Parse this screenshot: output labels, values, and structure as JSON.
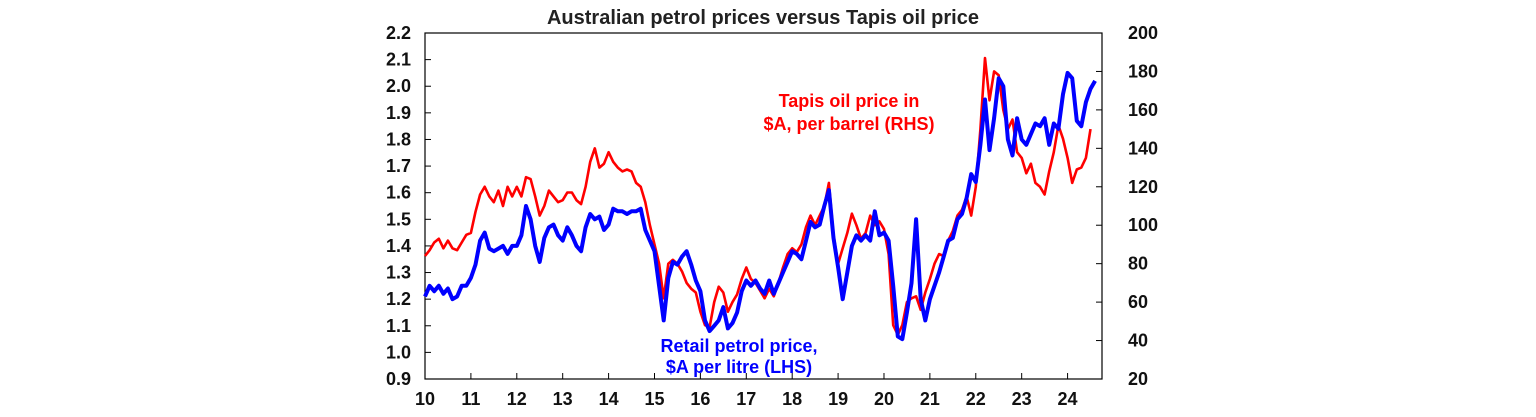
{
  "chart_data": {
    "type": "line",
    "title": "Australian petrol prices versus Tapis oil price",
    "x_ticks": [
      "10",
      "11",
      "12",
      "13",
      "14",
      "15",
      "16",
      "17",
      "18",
      "19",
      "20",
      "21",
      "22",
      "23",
      "24"
    ],
    "x_range": [
      2010,
      2024.75
    ],
    "y_left": {
      "range": [
        0.9,
        2.2
      ],
      "ticks": [
        "0.9",
        "1.0",
        "1.1",
        "1.2",
        "1.3",
        "1.4",
        "1.5",
        "1.6",
        "1.7",
        "1.8",
        "1.9",
        "2.0",
        "2.1",
        "2.2"
      ]
    },
    "y_right": {
      "range": [
        20,
        200
      ],
      "ticks": [
        "20",
        "40",
        "60",
        "80",
        "100",
        "120",
        "140",
        "160",
        "180",
        "200"
      ]
    },
    "grid": false,
    "series": [
      {
        "name": "Retail petrol price, $A per litre (LHS)",
        "axis": "left",
        "color": "#0000ff",
        "points": [
          [
            2010.0,
            1.21
          ],
          [
            2010.1,
            1.25
          ],
          [
            2010.2,
            1.23
          ],
          [
            2010.3,
            1.25
          ],
          [
            2010.4,
            1.22
          ],
          [
            2010.5,
            1.24
          ],
          [
            2010.6,
            1.2
          ],
          [
            2010.7,
            1.21
          ],
          [
            2010.8,
            1.25
          ],
          [
            2010.9,
            1.25
          ],
          [
            2011.0,
            1.28
          ],
          [
            2011.1,
            1.33
          ],
          [
            2011.2,
            1.42
          ],
          [
            2011.3,
            1.45
          ],
          [
            2011.4,
            1.39
          ],
          [
            2011.5,
            1.38
          ],
          [
            2011.6,
            1.39
          ],
          [
            2011.7,
            1.4
          ],
          [
            2011.8,
            1.37
          ],
          [
            2011.9,
            1.4
          ],
          [
            2012.0,
            1.4
          ],
          [
            2012.1,
            1.44
          ],
          [
            2012.2,
            1.55
          ],
          [
            2012.3,
            1.5
          ],
          [
            2012.4,
            1.4
          ],
          [
            2012.5,
            1.34
          ],
          [
            2012.6,
            1.43
          ],
          [
            2012.7,
            1.47
          ],
          [
            2012.8,
            1.48
          ],
          [
            2012.9,
            1.44
          ],
          [
            2013.0,
            1.42
          ],
          [
            2013.1,
            1.47
          ],
          [
            2013.2,
            1.44
          ],
          [
            2013.3,
            1.4
          ],
          [
            2013.4,
            1.38
          ],
          [
            2013.5,
            1.47
          ],
          [
            2013.6,
            1.52
          ],
          [
            2013.7,
            1.5
          ],
          [
            2013.8,
            1.51
          ],
          [
            2013.9,
            1.46
          ],
          [
            2014.0,
            1.48
          ],
          [
            2014.1,
            1.54
          ],
          [
            2014.2,
            1.53
          ],
          [
            2014.3,
            1.53
          ],
          [
            2014.4,
            1.52
          ],
          [
            2014.5,
            1.53
          ],
          [
            2014.6,
            1.53
          ],
          [
            2014.7,
            1.54
          ],
          [
            2014.8,
            1.46
          ],
          [
            2014.9,
            1.42
          ],
          [
            2015.0,
            1.38
          ],
          [
            2015.1,
            1.25
          ],
          [
            2015.2,
            1.12
          ],
          [
            2015.3,
            1.28
          ],
          [
            2015.4,
            1.34
          ],
          [
            2015.5,
            1.33
          ],
          [
            2015.6,
            1.36
          ],
          [
            2015.7,
            1.38
          ],
          [
            2015.8,
            1.33
          ],
          [
            2015.9,
            1.27
          ],
          [
            2016.0,
            1.23
          ],
          [
            2016.1,
            1.12
          ],
          [
            2016.2,
            1.08
          ],
          [
            2016.3,
            1.1
          ],
          [
            2016.4,
            1.12
          ],
          [
            2016.5,
            1.17
          ],
          [
            2016.6,
            1.09
          ],
          [
            2016.7,
            1.11
          ],
          [
            2016.8,
            1.15
          ],
          [
            2016.9,
            1.23
          ],
          [
            2017.0,
            1.27
          ],
          [
            2017.1,
            1.25
          ],
          [
            2017.2,
            1.27
          ],
          [
            2017.3,
            1.24
          ],
          [
            2017.4,
            1.22
          ],
          [
            2017.5,
            1.27
          ],
          [
            2017.6,
            1.22
          ],
          [
            2017.7,
            1.26
          ],
          [
            2017.8,
            1.3
          ],
          [
            2017.9,
            1.34
          ],
          [
            2018.0,
            1.38
          ],
          [
            2018.1,
            1.37
          ],
          [
            2018.2,
            1.35
          ],
          [
            2018.3,
            1.42
          ],
          [
            2018.4,
            1.49
          ],
          [
            2018.5,
            1.47
          ],
          [
            2018.6,
            1.48
          ],
          [
            2018.7,
            1.55
          ],
          [
            2018.8,
            1.61
          ],
          [
            2018.9,
            1.43
          ],
          [
            2019.0,
            1.32
          ],
          [
            2019.1,
            1.2
          ],
          [
            2019.2,
            1.3
          ],
          [
            2019.3,
            1.4
          ],
          [
            2019.4,
            1.44
          ],
          [
            2019.5,
            1.42
          ],
          [
            2019.6,
            1.44
          ],
          [
            2019.7,
            1.42
          ],
          [
            2019.8,
            1.53
          ],
          [
            2019.9,
            1.44
          ],
          [
            2020.0,
            1.45
          ],
          [
            2020.1,
            1.42
          ],
          [
            2020.2,
            1.25
          ],
          [
            2020.3,
            1.06
          ],
          [
            2020.4,
            1.05
          ],
          [
            2020.5,
            1.15
          ],
          [
            2020.6,
            1.26
          ],
          [
            2020.7,
            1.5
          ],
          [
            2020.8,
            1.2
          ],
          [
            2020.9,
            1.12
          ],
          [
            2021.0,
            1.2
          ],
          [
            2021.1,
            1.25
          ],
          [
            2021.2,
            1.3
          ],
          [
            2021.3,
            1.36
          ],
          [
            2021.4,
            1.42
          ],
          [
            2021.5,
            1.43
          ],
          [
            2021.6,
            1.5
          ],
          [
            2021.7,
            1.52
          ],
          [
            2021.8,
            1.58
          ],
          [
            2021.9,
            1.67
          ],
          [
            2022.0,
            1.64
          ],
          [
            2022.1,
            1.78
          ],
          [
            2022.2,
            1.95
          ],
          [
            2022.3,
            1.76
          ],
          [
            2022.4,
            1.88
          ],
          [
            2022.5,
            2.03
          ],
          [
            2022.6,
            2.0
          ],
          [
            2022.7,
            1.8
          ],
          [
            2022.8,
            1.74
          ],
          [
            2022.9,
            1.88
          ],
          [
            2023.0,
            1.8
          ],
          [
            2023.1,
            1.78
          ],
          [
            2023.2,
            1.82
          ],
          [
            2023.3,
            1.86
          ],
          [
            2023.4,
            1.85
          ],
          [
            2023.5,
            1.88
          ],
          [
            2023.6,
            1.78
          ],
          [
            2023.7,
            1.86
          ],
          [
            2023.8,
            1.84
          ],
          [
            2023.9,
            1.97
          ],
          [
            2024.0,
            2.05
          ],
          [
            2024.1,
            2.03
          ],
          [
            2024.2,
            1.87
          ],
          [
            2024.3,
            1.85
          ],
          [
            2024.4,
            1.94
          ],
          [
            2024.5,
            1.99
          ],
          [
            2024.6,
            2.02
          ]
        ]
      },
      {
        "name": "Tapis oil price in $A, per barrel (RHS)",
        "axis": "right",
        "color": "#ff0000",
        "points": [
          [
            2010.0,
            84
          ],
          [
            2010.1,
            87
          ],
          [
            2010.2,
            91
          ],
          [
            2010.3,
            93
          ],
          [
            2010.4,
            88
          ],
          [
            2010.5,
            92
          ],
          [
            2010.6,
            88
          ],
          [
            2010.7,
            87
          ],
          [
            2010.8,
            91
          ],
          [
            2010.9,
            95
          ],
          [
            2011.0,
            96
          ],
          [
            2011.1,
            107
          ],
          [
            2011.2,
            116
          ],
          [
            2011.3,
            120
          ],
          [
            2011.4,
            115
          ],
          [
            2011.5,
            112
          ],
          [
            2011.6,
            118
          ],
          [
            2011.7,
            110
          ],
          [
            2011.8,
            120
          ],
          [
            2011.9,
            115
          ],
          [
            2012.0,
            120
          ],
          [
            2012.1,
            115
          ],
          [
            2012.2,
            125
          ],
          [
            2012.3,
            124
          ],
          [
            2012.4,
            115
          ],
          [
            2012.5,
            105
          ],
          [
            2012.6,
            110
          ],
          [
            2012.7,
            118
          ],
          [
            2012.8,
            115
          ],
          [
            2012.9,
            112
          ],
          [
            2013.0,
            113
          ],
          [
            2013.1,
            117
          ],
          [
            2013.2,
            117
          ],
          [
            2013.3,
            113
          ],
          [
            2013.4,
            111
          ],
          [
            2013.5,
            120
          ],
          [
            2013.6,
            133
          ],
          [
            2013.7,
            140
          ],
          [
            2013.8,
            130
          ],
          [
            2013.9,
            132
          ],
          [
            2014.0,
            138
          ],
          [
            2014.1,
            133
          ],
          [
            2014.2,
            130
          ],
          [
            2014.3,
            128
          ],
          [
            2014.4,
            129
          ],
          [
            2014.5,
            128
          ],
          [
            2014.6,
            122
          ],
          [
            2014.7,
            120
          ],
          [
            2014.8,
            112
          ],
          [
            2014.9,
            100
          ],
          [
            2015.0,
            90
          ],
          [
            2015.1,
            80
          ],
          [
            2015.2,
            62
          ],
          [
            2015.3,
            80
          ],
          [
            2015.4,
            82
          ],
          [
            2015.5,
            80
          ],
          [
            2015.6,
            76
          ],
          [
            2015.7,
            70
          ],
          [
            2015.8,
            67
          ],
          [
            2015.9,
            65
          ],
          [
            2016.0,
            55
          ],
          [
            2016.1,
            48
          ],
          [
            2016.2,
            47
          ],
          [
            2016.3,
            60
          ],
          [
            2016.4,
            68
          ],
          [
            2016.5,
            65
          ],
          [
            2016.6,
            55
          ],
          [
            2016.7,
            60
          ],
          [
            2016.8,
            64
          ],
          [
            2016.9,
            72
          ],
          [
            2017.0,
            78
          ],
          [
            2017.1,
            72
          ],
          [
            2017.2,
            70
          ],
          [
            2017.3,
            66
          ],
          [
            2017.4,
            62
          ],
          [
            2017.5,
            67
          ],
          [
            2017.6,
            63
          ],
          [
            2017.7,
            70
          ],
          [
            2017.8,
            78
          ],
          [
            2017.9,
            85
          ],
          [
            2018.0,
            88
          ],
          [
            2018.1,
            86
          ],
          [
            2018.2,
            90
          ],
          [
            2018.3,
            99
          ],
          [
            2018.4,
            105
          ],
          [
            2018.5,
            100
          ],
          [
            2018.6,
            105
          ],
          [
            2018.7,
            110
          ],
          [
            2018.8,
            122
          ],
          [
            2018.9,
            95
          ],
          [
            2019.0,
            80
          ],
          [
            2019.1,
            88
          ],
          [
            2019.2,
            96
          ],
          [
            2019.3,
            106
          ],
          [
            2019.4,
            100
          ],
          [
            2019.5,
            93
          ],
          [
            2019.6,
            96
          ],
          [
            2019.7,
            105
          ],
          [
            2019.8,
            100
          ],
          [
            2019.9,
            102
          ],
          [
            2020.0,
            98
          ],
          [
            2020.1,
            85
          ],
          [
            2020.2,
            48
          ],
          [
            2020.3,
            43
          ],
          [
            2020.4,
            48
          ],
          [
            2020.5,
            60
          ],
          [
            2020.6,
            62
          ],
          [
            2020.7,
            63
          ],
          [
            2020.8,
            56
          ],
          [
            2020.9,
            65
          ],
          [
            2021.0,
            72
          ],
          [
            2021.1,
            80
          ],
          [
            2021.2,
            85
          ],
          [
            2021.3,
            84
          ],
          [
            2021.4,
            92
          ],
          [
            2021.5,
            97
          ],
          [
            2021.6,
            105
          ],
          [
            2021.7,
            108
          ],
          [
            2021.8,
            115
          ],
          [
            2021.9,
            105
          ],
          [
            2022.0,
            120
          ],
          [
            2022.1,
            150
          ],
          [
            2022.2,
            187
          ],
          [
            2022.3,
            165
          ],
          [
            2022.4,
            180
          ],
          [
            2022.5,
            178
          ],
          [
            2022.6,
            160
          ],
          [
            2022.7,
            150
          ],
          [
            2022.8,
            155
          ],
          [
            2022.9,
            138
          ],
          [
            2023.0,
            135
          ],
          [
            2023.1,
            127
          ],
          [
            2023.2,
            132
          ],
          [
            2023.3,
            122
          ],
          [
            2023.4,
            120
          ],
          [
            2023.5,
            116
          ],
          [
            2023.6,
            128
          ],
          [
            2023.7,
            138
          ],
          [
            2023.8,
            152
          ],
          [
            2023.9,
            145
          ],
          [
            2024.0,
            135
          ],
          [
            2024.1,
            122
          ],
          [
            2024.2,
            129
          ],
          [
            2024.3,
            130
          ],
          [
            2024.4,
            135
          ],
          [
            2024.5,
            150
          ]
        ]
      }
    ]
  },
  "annotations": {
    "red_line1": "Tapis oil price in",
    "red_line2": "$A, per barrel (RHS)",
    "blue_line1": "Retail petrol price,",
    "blue_line2": "$A per litre (LHS)"
  }
}
